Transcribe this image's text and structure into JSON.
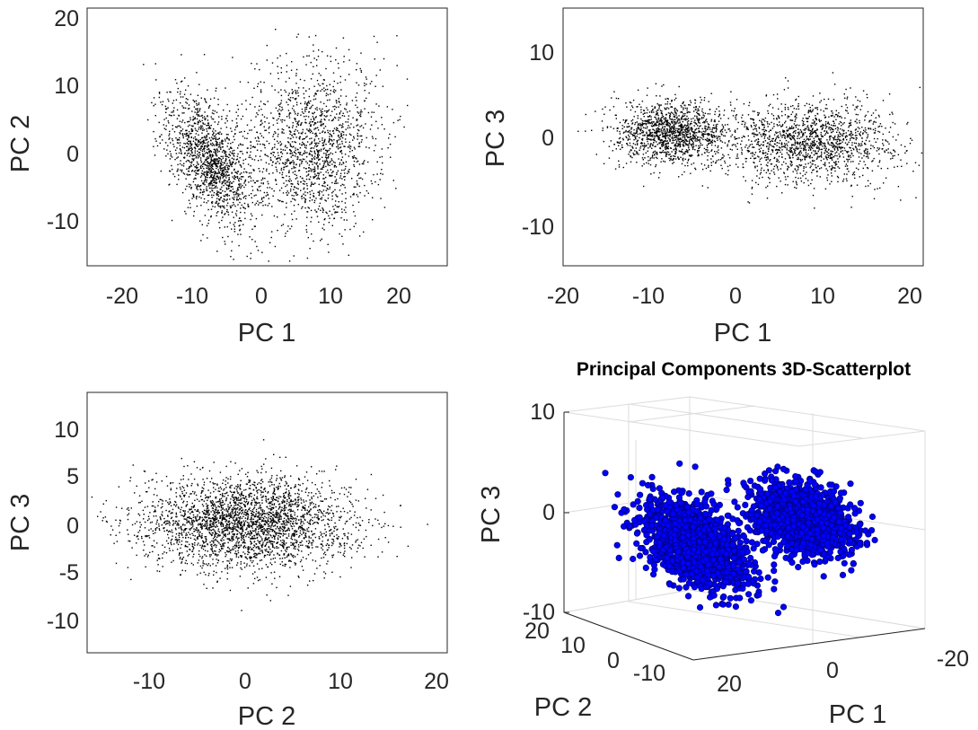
{
  "chart_data": [
    {
      "type": "scatter",
      "xlabel": "PC 1",
      "ylabel": "PC 2",
      "xlim": [
        -26,
        27
      ],
      "ylim": [
        -16.5,
        21
      ],
      "xticks": [
        "-20",
        "-10",
        "0",
        "10",
        "20"
      ],
      "yticks": [
        "-10",
        "0",
        "10",
        "20"
      ],
      "marker_color": "#000000",
      "clusters": [
        {
          "center": [
            -8,
            -1
          ],
          "spread": [
            3.2,
            4.0
          ],
          "tilt": -0.55,
          "count": 1400
        },
        {
          "center": [
            7,
            1
          ],
          "spread": [
            5.0,
            6.0
          ],
          "tilt": 0.0,
          "count": 1500
        }
      ]
    },
    {
      "type": "scatter",
      "xlabel": "PC 1",
      "ylabel": "PC 3",
      "xlim": [
        -21,
        21.5
      ],
      "ylim": [
        -15,
        15
      ],
      "xticks": [
        "-20",
        "-10",
        "0",
        "10",
        "20"
      ],
      "yticks": [
        "-10",
        "0",
        "10"
      ],
      "marker_color": "#000000",
      "clusters": [
        {
          "center": [
            -8,
            0.5
          ],
          "spread": [
            3.5,
            1.8
          ],
          "tilt": 0.0,
          "count": 1400
        },
        {
          "center": [
            8,
            -0.5
          ],
          "spread": [
            5.0,
            2.4
          ],
          "tilt": 0.0,
          "count": 1500
        }
      ]
    },
    {
      "type": "scatter",
      "xlabel": "PC 2",
      "ylabel": "PC 3",
      "xlim": [
        -16.5,
        21
      ],
      "ylim": [
        -13,
        13
      ],
      "xticks": [
        "-10",
        "0",
        "10",
        "20"
      ],
      "yticks": [
        "-10",
        "-5",
        "0",
        "5",
        "10"
      ],
      "marker_color": "#000000",
      "clusters": [
        {
          "center": [
            0,
            0
          ],
          "spread": [
            5.5,
            2.3
          ],
          "tilt": 0.0,
          "count": 2900
        }
      ]
    },
    {
      "type": "scatter3d",
      "title": "Principal Components 3D-Scatterplot",
      "xlabel": "PC 1",
      "ylabel": "PC 2",
      "zlabel": "PC 3",
      "xticks": [
        "-20",
        "0",
        "20"
      ],
      "yticks": [
        "-10",
        "0",
        "10",
        "20"
      ],
      "zticks": [
        "-10",
        "0",
        "10"
      ],
      "marker_face_color": "#0000ff",
      "marker_edge_color": "#000080",
      "clusters": [
        {
          "center": [
            -8,
            -1,
            0.5
          ],
          "count": 1400
        },
        {
          "center": [
            7,
            1,
            -0.5
          ],
          "count": 1500
        }
      ]
    }
  ]
}
